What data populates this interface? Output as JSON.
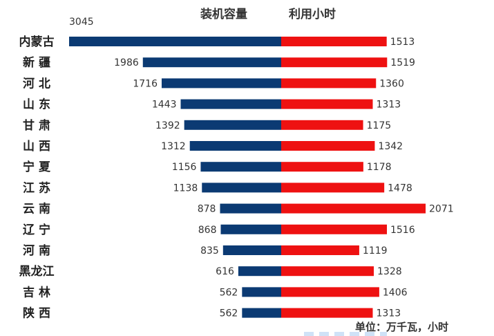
{
  "header": {
    "left": "装机容量",
    "right": "利用小时"
  },
  "unit_note": "单位：万千瓦，小时",
  "colors": {
    "capacity": "#0b3a73",
    "hours": "#ee1111"
  },
  "chart_data": {
    "type": "bar",
    "orientation": "horizontal-diverging",
    "categories": [
      "内蒙古",
      "新 疆",
      "河 北",
      "山 东",
      "甘 肃",
      "山 西",
      "宁 夏",
      "江 苏",
      "云 南",
      "辽 宁",
      "河 南",
      "黑龙江",
      "吉 林",
      "陕 西"
    ],
    "series": [
      {
        "name": "装机容量",
        "values": [
          3045,
          1986,
          1716,
          1443,
          1392,
          1312,
          1156,
          1138,
          878,
          868,
          835,
          616,
          562,
          562
        ]
      },
      {
        "name": "利用小时",
        "values": [
          1513,
          1519,
          1360,
          1313,
          1175,
          1342,
          1178,
          1478,
          2071,
          1516,
          1119,
          1328,
          1406,
          1313
        ]
      }
    ],
    "title": "",
    "xlabel": "",
    "ylabel": "",
    "legend": "none",
    "grid": false
  }
}
